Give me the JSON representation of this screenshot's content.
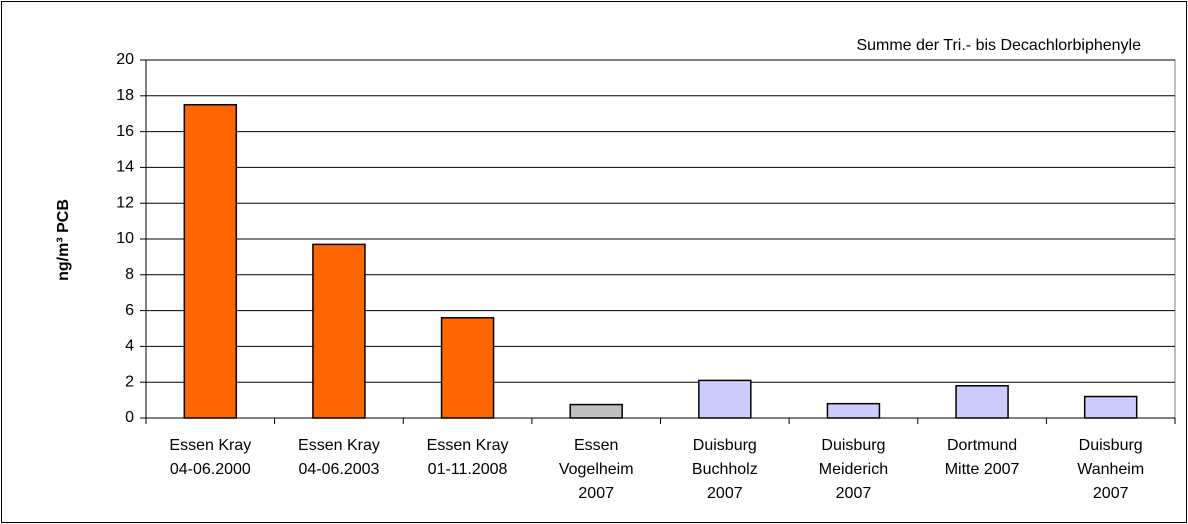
{
  "chart_data": {
    "type": "bar",
    "annotation": "Summe der Tri.- bis Decachlorbiphenyle",
    "y_label": "ng/m³ PCB",
    "categories": [
      [
        "Essen Kray",
        "04-06.2000"
      ],
      [
        "Essen Kray",
        "04-06.2003"
      ],
      [
        "Essen Kray",
        "01-11.2008"
      ],
      [
        "Essen",
        "Vogelheim",
        "2007"
      ],
      [
        "Duisburg",
        "Buchholz",
        "2007"
      ],
      [
        "Duisburg",
        "Meiderich",
        "2007"
      ],
      [
        "Dortmund",
        "Mitte 2007"
      ],
      [
        "Duisburg",
        "Wanheim",
        "2007"
      ]
    ],
    "values": [
      17.5,
      9.7,
      5.6,
      0.75,
      2.1,
      0.8,
      1.8,
      1.2
    ],
    "colors": [
      "#ff6600",
      "#ff6600",
      "#ff6600",
      "#c0c0c0",
      "#ccccff",
      "#ccccff",
      "#ccccff",
      "#ccccff"
    ],
    "ylim": [
      0,
      20
    ],
    "yticks": [
      0,
      2,
      4,
      6,
      8,
      10,
      12,
      14,
      16,
      18,
      20
    ],
    "grid": true
  }
}
